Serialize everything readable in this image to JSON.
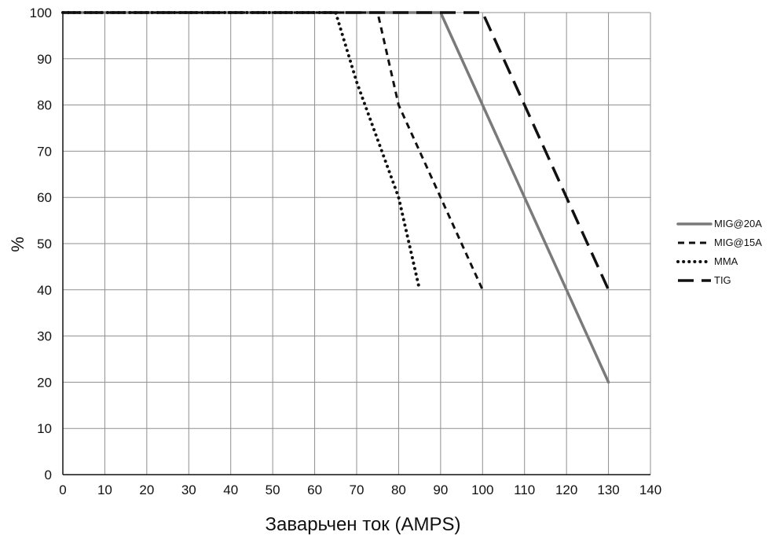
{
  "chart_data": {
    "type": "line",
    "title": "",
    "xlabel": "Заварьчен ток (AMPS)",
    "ylabel": "%",
    "xlim": [
      0,
      140
    ],
    "ylim": [
      0,
      100
    ],
    "x_ticks": [
      0,
      10,
      20,
      30,
      40,
      50,
      60,
      70,
      80,
      90,
      100,
      110,
      120,
      130,
      140
    ],
    "y_ticks": [
      0,
      10,
      20,
      30,
      40,
      50,
      60,
      70,
      80,
      90,
      100
    ],
    "grid": true,
    "legend_position": "right",
    "series": [
      {
        "name": "MIG@20A",
        "style": "solid",
        "color": "#7a7a7a",
        "points": [
          [
            0,
            100
          ],
          [
            90,
            100
          ],
          [
            100,
            80
          ],
          [
            110,
            60
          ],
          [
            120,
            40
          ],
          [
            130,
            20
          ]
        ]
      },
      {
        "name": "MIG@15A",
        "style": "dashed",
        "color": "#111111",
        "points": [
          [
            0,
            100
          ],
          [
            75,
            100
          ],
          [
            80,
            80
          ],
          [
            90,
            60
          ],
          [
            100,
            40
          ]
        ]
      },
      {
        "name": "MMA",
        "style": "dotted",
        "color": "#111111",
        "points": [
          [
            0,
            100
          ],
          [
            65,
            100
          ],
          [
            70,
            85
          ],
          [
            80,
            60
          ],
          [
            85,
            40
          ]
        ]
      },
      {
        "name": "TIG",
        "style": "long-dash",
        "color": "#111111",
        "points": [
          [
            0,
            100
          ],
          [
            100,
            100
          ],
          [
            110,
            80
          ],
          [
            120,
            60
          ],
          [
            130,
            40
          ]
        ]
      }
    ]
  }
}
